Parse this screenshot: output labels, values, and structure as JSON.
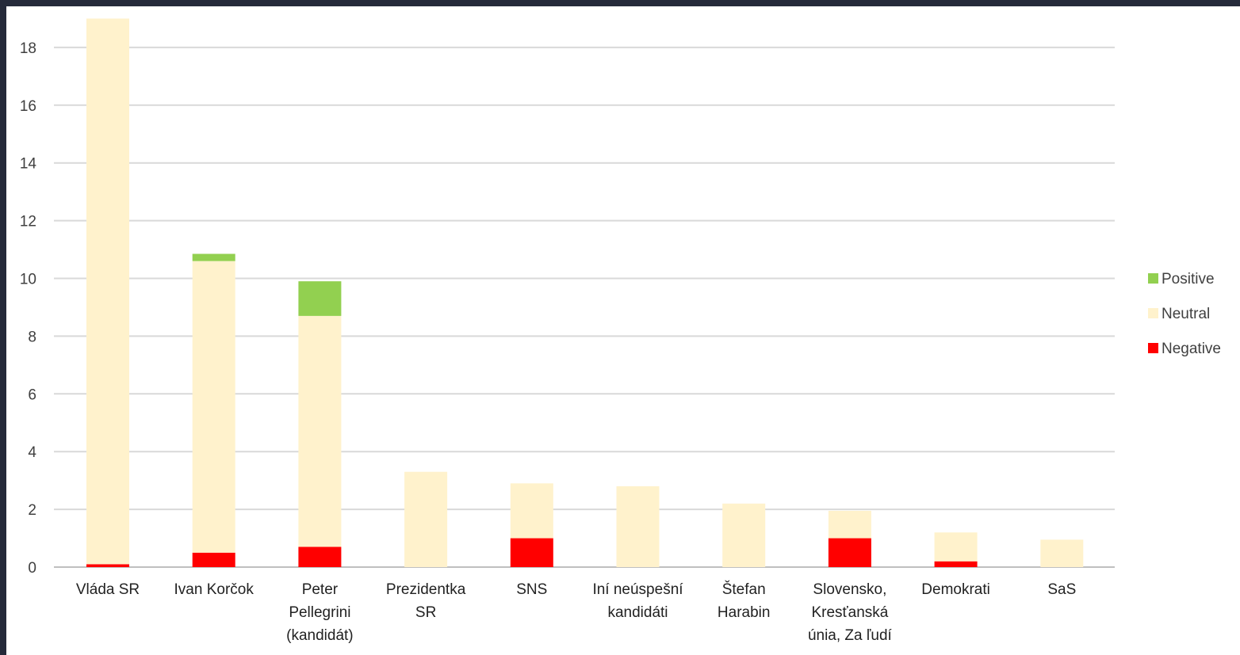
{
  "chart_data": {
    "type": "bar",
    "stacked": true,
    "categories": [
      [
        "Vláda SR"
      ],
      [
        "Ivan Korčok"
      ],
      [
        "Peter",
        "Pellegrini",
        "(kandidát)"
      ],
      [
        "Prezidentka",
        "SR"
      ],
      [
        "SNS"
      ],
      [
        "Iní neúspešní",
        "kandidáti"
      ],
      [
        "Štefan",
        "Harabin"
      ],
      [
        "Slovensko,",
        "Kresťanská",
        "únia, Za ľudí"
      ],
      [
        "Demokrati"
      ],
      [
        "SaS"
      ]
    ],
    "series": [
      {
        "name": "Negative",
        "color": "#ff0000",
        "values": [
          0.1,
          0.5,
          0.7,
          0,
          1.0,
          0,
          0,
          1.0,
          0.2,
          0
        ]
      },
      {
        "name": "Neutral",
        "color": "#fff2cc",
        "values": [
          18.9,
          10.1,
          8.0,
          3.3,
          1.9,
          2.8,
          2.2,
          0.95,
          1.0,
          0.95
        ]
      },
      {
        "name": "Positive",
        "color": "#92d050",
        "values": [
          0,
          0.25,
          1.2,
          0,
          0,
          0,
          0,
          0,
          0,
          0
        ]
      }
    ],
    "yticks": [
      0,
      2,
      4,
      6,
      8,
      10,
      12,
      14,
      16,
      18
    ],
    "ylim": [
      0,
      19
    ],
    "grid": true,
    "legend_position": "right"
  }
}
